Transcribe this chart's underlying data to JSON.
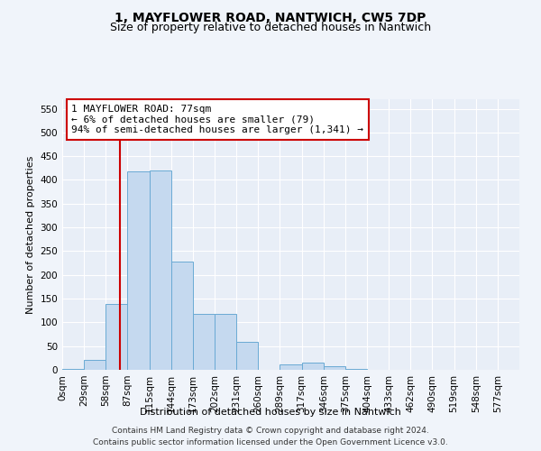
{
  "title": "1, MAYFLOWER ROAD, NANTWICH, CW5 7DP",
  "subtitle": "Size of property relative to detached houses in Nantwich",
  "xlabel": "Distribution of detached houses by size in Nantwich",
  "ylabel": "Number of detached properties",
  "bar_labels": [
    "0sqm",
    "29sqm",
    "58sqm",
    "87sqm",
    "115sqm",
    "144sqm",
    "173sqm",
    "202sqm",
    "231sqm",
    "260sqm",
    "289sqm",
    "317sqm",
    "346sqm",
    "375sqm",
    "404sqm",
    "433sqm",
    "462sqm",
    "490sqm",
    "519sqm",
    "548sqm",
    "577sqm"
  ],
  "bar_values": [
    2,
    20,
    138,
    418,
    420,
    228,
    118,
    118,
    58,
    0,
    12,
    15,
    7,
    2,
    0,
    0,
    0,
    0,
    0,
    0,
    0
  ],
  "bar_color": "#c5d9ef",
  "bar_edge_color": "#6aaad4",
  "vline_x": 2,
  "vline_color": "#cc0000",
  "annotation_text": "1 MAYFLOWER ROAD: 77sqm\n← 6% of detached houses are smaller (79)\n94% of semi-detached houses are larger (1,341) →",
  "annotation_box_color": "white",
  "annotation_box_edge": "#cc0000",
  "ylim": [
    0,
    570
  ],
  "yticks": [
    0,
    50,
    100,
    150,
    200,
    250,
    300,
    350,
    400,
    450,
    500,
    550
  ],
  "footer_line1": "Contains HM Land Registry data © Crown copyright and database right 2024.",
  "footer_line2": "Contains public sector information licensed under the Open Government Licence v3.0.",
  "background_color": "#f0f4fa",
  "plot_background": "#e8eef7",
  "grid_color": "white",
  "title_fontsize": 10,
  "subtitle_fontsize": 9,
  "axis_label_fontsize": 8,
  "tick_fontsize": 7.5,
  "annotation_fontsize": 8,
  "footer_fontsize": 6.5
}
